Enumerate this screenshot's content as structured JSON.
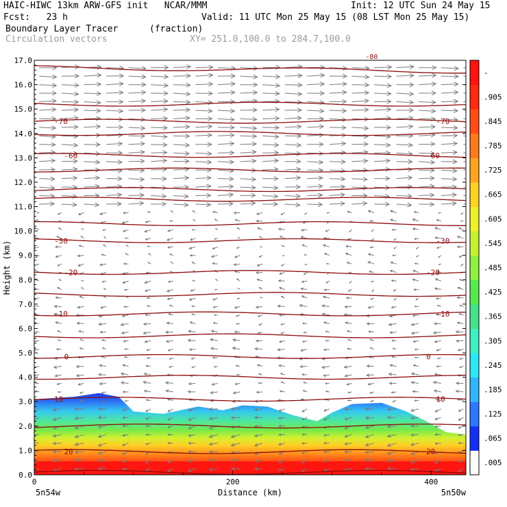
{
  "header": {
    "line1_left": "HAIC-HIWC 13km ARW-GFS init   NCAR/MMM",
    "line1_right": "Init: 12 UTC Sun 24 May 15",
    "line2_left": "Fcst:   23 h",
    "line2_right": "Valid: 11 UTC Mon 25 May 15 (08 LST Mon 25 May 15)",
    "field_name": "Boundary Layer Tracer",
    "field_units": "(fraction)",
    "overlay_name": "Circulation vectors",
    "cross_section": "XY= 251.0,100.0 to 284.7,100.0"
  },
  "chart_data": {
    "type": "heatmap",
    "title": "Boundary Layer Tracer",
    "units": "(fraction)",
    "overlays": [
      "Circulation vectors",
      "Temperature contours (C)"
    ],
    "xlabel": "Distance (km)",
    "ylabel": "Height (km)",
    "xlim": [
      0,
      435
    ],
    "ylim": [
      0,
      17
    ],
    "x_ticks": [
      0,
      200,
      400
    ],
    "y_ticks": [
      "0.0",
      "1.0",
      "2.0",
      "3.0",
      "4.0",
      "5.0",
      "6.0",
      "7.0",
      "8.0",
      "9.0",
      "10.0",
      "11.0",
      "12.0",
      "13.0",
      "14.0",
      "15.0",
      "16.0",
      "17.0"
    ],
    "x_endpoints": [
      "5n54w",
      "5n50w"
    ],
    "colorbar": {
      "labels": [
        ".005",
        ".065",
        ".125",
        ".185",
        ".245",
        ".305",
        ".365",
        ".425",
        ".485",
        ".545",
        ".605",
        ".665",
        ".725",
        ".785",
        ".845",
        ".905"
      ],
      "top_label": "-",
      "colors": [
        "#ffffff",
        "#1530f5",
        "#2d78ff",
        "#31b6ff",
        "#2ee6f4",
        "#3ef0c2",
        "#45e28c",
        "#57ea4e",
        "#8ff03e",
        "#c4f232",
        "#eef02c",
        "#ffd226",
        "#ffa51f",
        "#ff7a1a",
        "#ff4d16",
        "#ff2a12",
        "#ff1410"
      ]
    },
    "tracer_top_km": [
      {
        "x": 0,
        "z": 3.1
      },
      {
        "x": 40,
        "z": 3.2
      },
      {
        "x": 65,
        "z": 3.35
      },
      {
        "x": 85,
        "z": 3.2
      },
      {
        "x": 100,
        "z": 2.6
      },
      {
        "x": 130,
        "z": 2.5
      },
      {
        "x": 165,
        "z": 2.8
      },
      {
        "x": 190,
        "z": 2.65
      },
      {
        "x": 210,
        "z": 2.85
      },
      {
        "x": 235,
        "z": 2.8
      },
      {
        "x": 260,
        "z": 2.45
      },
      {
        "x": 285,
        "z": 2.2
      },
      {
        "x": 300,
        "z": 2.55
      },
      {
        "x": 320,
        "z": 2.9
      },
      {
        "x": 350,
        "z": 2.95
      },
      {
        "x": 375,
        "z": 2.6
      },
      {
        "x": 395,
        "z": 2.2
      },
      {
        "x": 415,
        "z": 1.75
      },
      {
        "x": 435,
        "z": 1.65
      }
    ],
    "temperature_contours_c": [
      {
        "label": "-70",
        "z": 14.5
      },
      {
        "label": "-60",
        "z": 13.1
      },
      {
        "label": "-30",
        "z": 9.6
      },
      {
        "label": "-20",
        "z": 8.3
      },
      {
        "label": "-10",
        "z": 6.6
      },
      {
        "label": "0",
        "z": 4.85
      },
      {
        "label": "10",
        "z": 3.1
      },
      {
        "label": "20",
        "z": 0.95
      }
    ],
    "other_contour_heights_km": [
      16.7,
      15.2,
      14.0,
      12.5,
      11.7,
      11.3,
      10.3,
      7.4,
      5.7,
      4.0,
      2.0,
      0.1
    ],
    "top_contour_label": "-80"
  }
}
